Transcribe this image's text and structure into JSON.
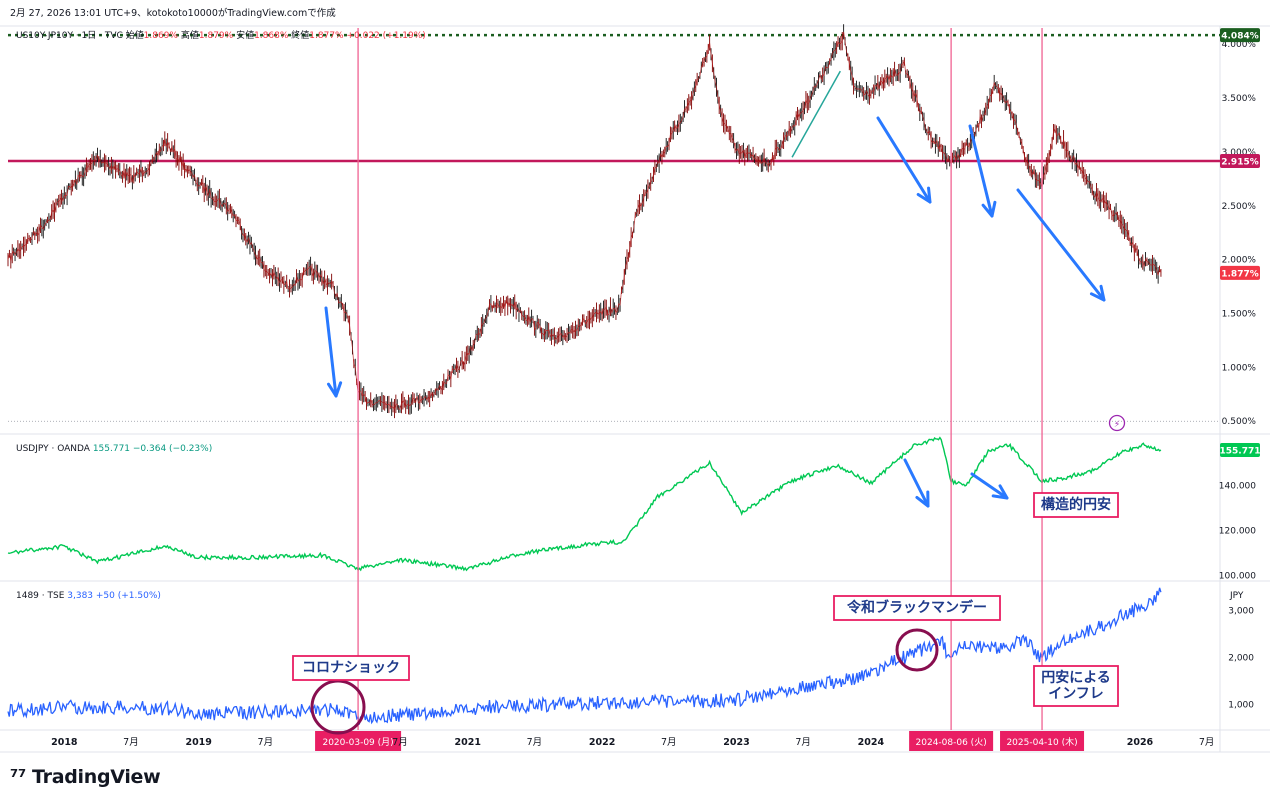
{
  "header": {
    "caption": "2月 27, 2026 13:01 UTC+9、kotokoto10000がTradingView.comで作成"
  },
  "brand": "TradingView",
  "panes": {
    "top": {
      "symbol": "US10Y-JP10Y · 1日 · TVC",
      "ohlc": [
        {
          "label": "始値",
          "value": "1.869%"
        },
        {
          "label": "高値",
          "value": "1.879%"
        },
        {
          "label": "安値",
          "value": "1.868%"
        },
        {
          "label": "終値",
          "value": "1.877%"
        }
      ],
      "change": "+0.022 (+1.19%)",
      "unit": "%"
    },
    "mid": {
      "symbol": "USDJPY · OANDA",
      "value": "155.771",
      "change": "−0.364 (−0.23%)",
      "unit": "JPY"
    },
    "bot": {
      "symbol": "1489 · TSE",
      "value": "3,383",
      "change": "+50 (+1.50%)",
      "unit": "JPY"
    }
  },
  "annotations": {
    "corona": "コロナショック",
    "reiwa": "令和ブラックマンデー",
    "kozo": "構造的円安",
    "inflation_1": "円安による",
    "inflation_2": "インフレ"
  },
  "vlines": [
    {
      "date": "2020-03-09",
      "label": "2020-03-09 (月)"
    },
    {
      "date": "2024-08-06",
      "label": "2024-08-06 (火)"
    },
    {
      "date": "2025-04-10",
      "label": "2025-04-10 (木)"
    }
  ],
  "hlines": [
    {
      "value": 4.084,
      "label": "4.084%",
      "color": "#1b5e20",
      "style": "dotted"
    },
    {
      "value": 2.915,
      "label": "2.915%",
      "color": "#c2185b",
      "style": "solid"
    }
  ],
  "colors": {
    "spread": "#b71c1c",
    "usdjpy": "#00c853",
    "etf": "#2962ff",
    "vline": "#f06292",
    "label_bg": "#e91e63",
    "arrow": "#2979ff",
    "box_border": "#e91e63",
    "box_text": "#1e3a8a",
    "circle": "#880e4f"
  },
  "chart_data": [
    {
      "type": "line",
      "title": "US10Y-JP10Y",
      "ylabel": "%",
      "ylim": [
        0.4,
        4.15
      ],
      "yticks": [
        "0.500%",
        "1.000%",
        "1.500%",
        "2.000%",
        "2.500%",
        "3.000%",
        "3.500%",
        "4.000%"
      ],
      "last_value_label": "1.877%",
      "x": [
        "2017-08-01",
        "2017-11-01",
        "2018-01-01",
        "2018-04-01",
        "2018-07-01",
        "2018-09-01",
        "2018-10-01",
        "2019-01-01",
        "2019-04-01",
        "2019-07-01",
        "2019-09-01",
        "2019-11-01",
        "2020-01-01",
        "2020-02-15",
        "2020-03-09",
        "2020-04-01",
        "2020-07-01",
        "2020-10-01",
        "2021-01-01",
        "2021-03-01",
        "2021-05-01",
        "2021-07-01",
        "2021-09-01",
        "2021-11-01",
        "2022-01-01",
        "2022-02-15",
        "2022-04-01",
        "2022-06-01",
        "2022-09-01",
        "2022-10-20",
        "2022-11-15",
        "2023-01-01",
        "2023-04-01",
        "2023-07-01",
        "2023-10-19",
        "2023-11-15",
        "2024-01-01",
        "2024-04-01",
        "2024-06-01",
        "2024-08-06",
        "2024-10-01",
        "2024-12-01",
        "2025-01-15",
        "2025-03-01",
        "2025-04-10",
        "2025-05-15",
        "2025-07-01",
        "2025-09-01",
        "2025-11-01",
        "2026-01-01",
        "2026-02-27"
      ],
      "values": [
        2.0,
        2.3,
        2.6,
        2.95,
        2.75,
        2.9,
        3.1,
        2.7,
        2.45,
        1.9,
        1.75,
        1.9,
        1.75,
        1.4,
        0.75,
        0.7,
        0.65,
        0.75,
        1.1,
        1.55,
        1.6,
        1.4,
        1.25,
        1.4,
        1.5,
        1.55,
        2.4,
        2.9,
        3.5,
        4.0,
        3.4,
        3.0,
        2.9,
        3.4,
        4.08,
        3.6,
        3.55,
        3.8,
        3.2,
        2.9,
        3.1,
        3.6,
        3.4,
        2.9,
        2.7,
        3.2,
        2.95,
        2.6,
        2.4,
        2.0,
        1.877
      ]
    },
    {
      "type": "line",
      "title": "USDJPY",
      "ylabel": "JPY",
      "ylim": [
        98,
        162
      ],
      "yticks": [
        "100.000",
        "120.000",
        "140.000"
      ],
      "last_value_label": "155.771",
      "x": [
        "2017-08-01",
        "2018-01-01",
        "2018-04-01",
        "2018-10-01",
        "2019-01-01",
        "2019-06-01",
        "2019-12-01",
        "2020-03-09",
        "2020-07-01",
        "2021-01-01",
        "2021-06-01",
        "2021-12-01",
        "2022-03-01",
        "2022-06-01",
        "2022-10-20",
        "2023-01-15",
        "2023-06-01",
        "2023-10-01",
        "2024-01-01",
        "2024-04-29",
        "2024-07-10",
        "2024-08-06",
        "2024-09-16",
        "2024-11-15",
        "2025-01-10",
        "2025-04-10",
        "2025-06-01",
        "2025-09-01",
        "2025-11-15",
        "2026-01-10",
        "2026-02-27"
      ],
      "values": [
        110,
        113,
        106,
        113,
        108,
        108,
        109,
        103,
        107,
        103,
        110,
        114,
        115,
        135,
        150,
        128,
        142,
        149,
        141,
        158,
        161,
        142,
        140,
        155,
        158,
        142,
        143,
        147,
        155,
        158,
        155.771
      ]
    },
    {
      "type": "line",
      "title": "1489 TSE",
      "ylabel": "JPY",
      "ylim": [
        500,
        3600
      ],
      "yticks": [
        "1,000",
        "2,000",
        "3,000"
      ],
      "last_value_label": "3,383",
      "x": [
        "2017-08-01",
        "2018-01-01",
        "2018-10-01",
        "2018-12-25",
        "2019-08-01",
        "2020-01-15",
        "2020-03-09",
        "2020-04-01",
        "2020-10-01",
        "2021-03-01",
        "2021-09-01",
        "2022-03-01",
        "2022-09-01",
        "2023-01-01",
        "2023-06-01",
        "2023-12-01",
        "2024-03-01",
        "2024-07-10",
        "2024-08-06",
        "2024-09-01",
        "2024-12-01",
        "2025-03-01",
        "2025-04-10",
        "2025-06-01",
        "2025-09-01",
        "2025-12-01",
        "2026-01-15",
        "2026-02-27"
      ],
      "values": [
        850,
        950,
        920,
        800,
        850,
        900,
        700,
        750,
        800,
        950,
        1000,
        1050,
        1050,
        1100,
        1350,
        1550,
        1900,
        2350,
        1900,
        2200,
        2200,
        2350,
        1950,
        2350,
        2600,
        2950,
        3100,
        3383
      ]
    }
  ],
  "x_axis": {
    "ticks": [
      {
        "date": "2018-01-01",
        "label": "2018"
      },
      {
        "date": "2018-07-01",
        "label": "7月"
      },
      {
        "date": "2019-01-01",
        "label": "2019"
      },
      {
        "date": "2019-07-01",
        "label": "7月"
      },
      {
        "date": "2020-07-01",
        "label": "7月"
      },
      {
        "date": "2021-01-01",
        "label": "2021"
      },
      {
        "date": "2021-07-01",
        "label": "7月"
      },
      {
        "date": "2022-01-01",
        "label": "2022"
      },
      {
        "date": "2022-07-01",
        "label": "7月"
      },
      {
        "date": "2023-01-01",
        "label": "2023"
      },
      {
        "date": "2023-07-01",
        "label": "7月"
      },
      {
        "date": "2024-01-01",
        "label": "2024"
      },
      {
        "date": "2026-01-01",
        "label": "2026"
      },
      {
        "date": "2026-07-01",
        "label": "7月"
      }
    ]
  }
}
